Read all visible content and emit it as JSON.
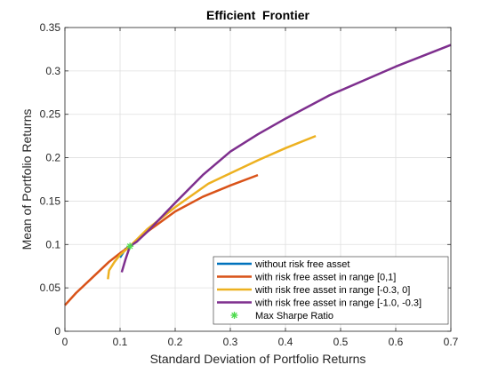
{
  "colors": {
    "background": "#ffffff",
    "grid": "#dfdfdf",
    "axis": "#262626"
  },
  "chart_data": {
    "type": "line",
    "title": "Efficient  Frontier",
    "xlabel": "Standard Deviation of Portfolio Returns",
    "ylabel": "Mean of Portfolio Returns",
    "xlim": [
      0,
      0.7
    ],
    "ylim": [
      0,
      0.35
    ],
    "xticks": [
      0,
      0.1,
      0.2,
      0.3,
      0.4,
      0.5,
      0.6,
      0.7
    ],
    "xtick_labels": [
      "0",
      "0.1",
      "0.2",
      "0.3",
      "0.4",
      "0.5",
      "0.6",
      "0.7"
    ],
    "yticks": [
      0,
      0.05,
      0.1,
      0.15,
      0.2,
      0.25,
      0.3,
      0.35
    ],
    "ytick_labels": [
      "0",
      "0.05",
      "0.1",
      "0.15",
      "0.2",
      "0.25",
      "0.3",
      "0.35"
    ],
    "grid": true,
    "legend_position": "bottom-right",
    "series": [
      {
        "name": "without risk free asset",
        "color": "#0072bd",
        "x": [
          0.1,
          0.105,
          0.11,
          0.118
        ],
        "y": [
          0.085,
          0.09,
          0.095,
          0.098
        ]
      },
      {
        "name": "with risk free asset in range [0,1]",
        "color": "#d95319",
        "x": [
          0,
          0.02,
          0.05,
          0.08,
          0.1,
          0.118,
          0.15,
          0.2,
          0.25,
          0.3,
          0.35
        ],
        "y": [
          0.03,
          0.044,
          0.062,
          0.08,
          0.09,
          0.098,
          0.115,
          0.138,
          0.155,
          0.168,
          0.18
        ]
      },
      {
        "name": "with risk free asset in range [-0.3, 0]",
        "color": "#edb120",
        "x": [
          0.078,
          0.08,
          0.09,
          0.1,
          0.118,
          0.15,
          0.2,
          0.26,
          0.3,
          0.35,
          0.4,
          0.455
        ],
        "y": [
          0.06,
          0.07,
          0.08,
          0.088,
          0.098,
          0.118,
          0.143,
          0.17,
          0.182,
          0.197,
          0.211,
          0.225
        ]
      },
      {
        "name": "with risk free asset in range [-1.0, -0.3]",
        "color": "#7e2f8e",
        "x": [
          0.103,
          0.11,
          0.118,
          0.13,
          0.15,
          0.2,
          0.25,
          0.3,
          0.35,
          0.4,
          0.48,
          0.6,
          0.7
        ],
        "y": [
          0.068,
          0.083,
          0.098,
          0.103,
          0.115,
          0.148,
          0.18,
          0.207,
          0.227,
          0.245,
          0.272,
          0.305,
          0.33
        ]
      }
    ],
    "markers": [
      {
        "name": "Max Sharpe Ratio",
        "color": "#4dda4d",
        "symbol": "*",
        "x": 0.118,
        "y": 0.098
      }
    ]
  }
}
